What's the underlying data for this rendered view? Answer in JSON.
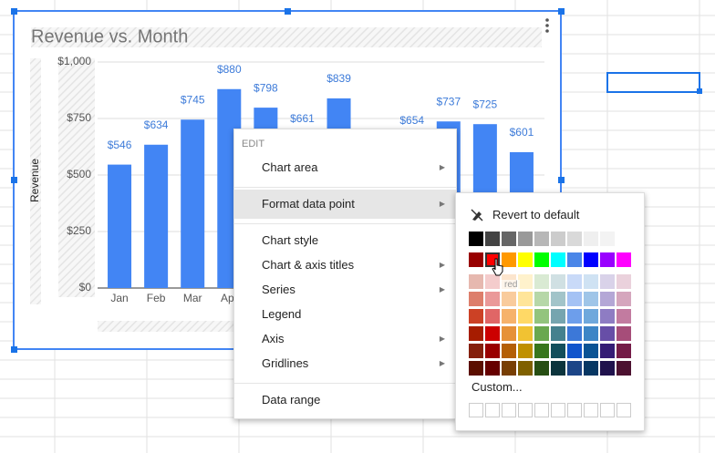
{
  "chart_data": {
    "type": "bar",
    "title": "Revenue vs. Month",
    "y_label": "Revenue",
    "categories": [
      "Jan",
      "Feb",
      "Mar",
      "Apr",
      null,
      null,
      null,
      null,
      null,
      null,
      null,
      null
    ],
    "values": [
      546,
      634,
      745,
      880,
      798,
      661,
      839,
      null,
      654,
      737,
      725,
      601
    ],
    "value_labels": [
      "$546",
      "$634",
      "$745",
      "$880",
      "$798",
      "$661",
      "$839",
      null,
      "$654",
      "$737",
      "$725",
      "$601"
    ],
    "color": "#4285f4",
    "ylim": [
      0,
      1000
    ],
    "yticks": [
      {
        "value": 0,
        "label": "$0"
      },
      {
        "value": 250,
        "label": "$250"
      },
      {
        "value": 500,
        "label": "$500"
      },
      {
        "value": 750,
        "label": "$750"
      },
      {
        "value": 1000,
        "label": "$1,000"
      }
    ],
    "grid": true
  },
  "menu": {
    "heading": "EDIT",
    "items": [
      {
        "label": "Chart area",
        "arrow": true
      },
      {
        "label": "Format data point",
        "arrow": true,
        "active": true
      },
      {
        "label": "Chart style",
        "arrow": false
      },
      {
        "label": "Chart & axis titles",
        "arrow": true
      },
      {
        "label": "Series",
        "arrow": true
      },
      {
        "label": "Legend",
        "arrow": false
      },
      {
        "label": "Axis",
        "arrow": true
      },
      {
        "label": "Gridlines",
        "arrow": true
      },
      {
        "label": "Data range",
        "arrow": false
      }
    ]
  },
  "submenu": {
    "revert": "Revert to default",
    "tooltip": "red",
    "custom": "Custom..."
  }
}
